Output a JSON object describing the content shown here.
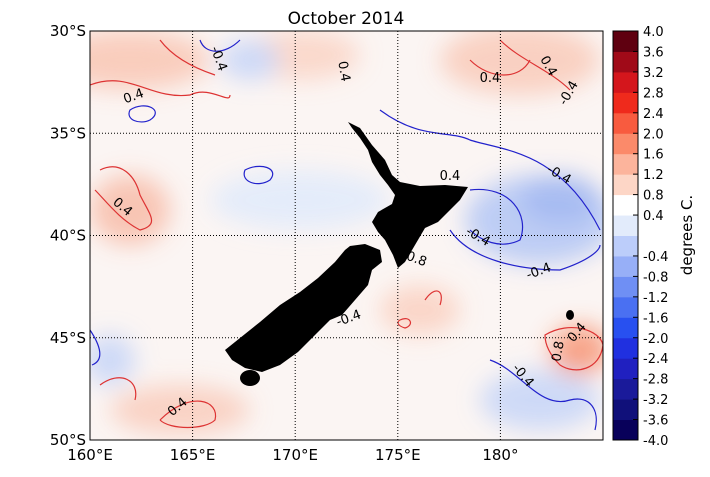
{
  "title": "October 2014",
  "lon_ticks": [
    {
      "value": 160,
      "label": "160°E"
    },
    {
      "value": 165,
      "label": "165°E"
    },
    {
      "value": 170,
      "label": "170°E"
    },
    {
      "value": 175,
      "label": "175°E"
    },
    {
      "value": 180,
      "label": "180°"
    }
  ],
  "lat_ticks": [
    {
      "value": 30,
      "label": "30°S"
    },
    {
      "value": 35,
      "label": "35°S"
    },
    {
      "value": 40,
      "label": "40°S"
    },
    {
      "value": 45,
      "label": "45°S"
    },
    {
      "value": 50,
      "label": "50°S"
    }
  ],
  "lon_lim": [
    160,
    185
  ],
  "lat_lim": [
    30,
    50
  ],
  "colorbar": {
    "label": "degrees C.",
    "lim": [
      -4,
      4
    ],
    "ticks": [
      {
        "value": 4,
        "label": "4.0"
      },
      {
        "value": 3.6,
        "label": "3.6"
      },
      {
        "value": 3.2,
        "label": "3.2"
      },
      {
        "value": 2.8,
        "label": "2.8"
      },
      {
        "value": 2.4,
        "label": "2.4"
      },
      {
        "value": 2,
        "label": "2.0"
      },
      {
        "value": 1.6,
        "label": "1.6"
      },
      {
        "value": 1.2,
        "label": "1.2"
      },
      {
        "value": 0.8,
        "label": "0.8"
      },
      {
        "value": 0.4,
        "label": "0.4"
      },
      {
        "value": -0.4,
        "label": "-0.4"
      },
      {
        "value": -0.8,
        "label": "-0.8"
      },
      {
        "value": -1.2,
        "label": "-1.2"
      },
      {
        "value": -1.6,
        "label": "-1.6"
      },
      {
        "value": -2,
        "label": "-2.0"
      },
      {
        "value": -2.4,
        "label": "-2.4"
      },
      {
        "value": -2.8,
        "label": "-2.8"
      },
      {
        "value": -3.2,
        "label": "-3.2"
      },
      {
        "value": -3.6,
        "label": "-3.6"
      },
      {
        "value": -4,
        "label": "-4.0"
      }
    ],
    "colors": [
      "#08005a",
      "#10107a",
      "#1a1a9a",
      "#2020c0",
      "#2030e0",
      "#2850f0",
      "#4a70f2",
      "#6f8ff4",
      "#97aff7",
      "#bccdfa",
      "#e2ebfb",
      "#ffffff",
      "#fdd6c6",
      "#fcb49c",
      "#fb8a6a",
      "#f85b3f",
      "#ef2a1c",
      "#d4161c",
      "#a00a18",
      "#5f0010"
    ]
  },
  "contour_labels": [
    "-0.4",
    "0.4",
    "0.4",
    "0.4",
    "0.4",
    "-0.4",
    "-0.4",
    "0.4",
    "-0.4",
    "-0.8",
    "-0.4",
    "-0.4",
    "0.4",
    "-0.4",
    "0.8",
    "0.4",
    "0.4"
  ]
}
